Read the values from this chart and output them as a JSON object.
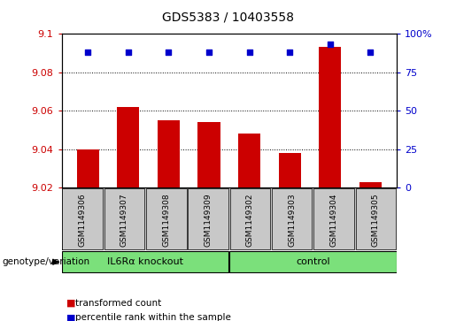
{
  "title": "GDS5383 / 10403558",
  "samples": [
    "GSM1149306",
    "GSM1149307",
    "GSM1149308",
    "GSM1149309",
    "GSM1149302",
    "GSM1149303",
    "GSM1149304",
    "GSM1149305"
  ],
  "transformed_counts": [
    9.04,
    9.062,
    9.055,
    9.054,
    9.048,
    9.038,
    9.093,
    9.023
  ],
  "percentile_ranks": [
    88,
    88,
    88,
    88,
    88,
    88,
    93,
    88
  ],
  "bar_color": "#cc0000",
  "dot_color": "#0000cc",
  "ylim_left": [
    9.02,
    9.1
  ],
  "ylim_right": [
    0,
    100
  ],
  "yticks_left": [
    9.02,
    9.04,
    9.06,
    9.08,
    9.1
  ],
  "yticks_right": [
    0,
    25,
    50,
    75,
    100
  ],
  "yticklabels_right": [
    "0",
    "25",
    "50",
    "75",
    "100%"
  ],
  "groups": [
    {
      "label": "IL6Rα knockout",
      "indices": [
        0,
        1,
        2,
        3
      ],
      "color": "#7be07b"
    },
    {
      "label": "control",
      "indices": [
        4,
        5,
        6,
        7
      ],
      "color": "#7be07b"
    }
  ],
  "genotype_label": "genotype/variation",
  "legend_items": [
    {
      "label": "transformed count",
      "color": "#cc0000"
    },
    {
      "label": "percentile rank within the sample",
      "color": "#0000cc"
    }
  ],
  "bar_color_legend": "#cc0000",
  "dot_color_legend": "#0000cc",
  "grid_color": "black",
  "bar_width": 0.55,
  "background_color": "#ffffff",
  "label_area_bg": "#c8c8c8"
}
